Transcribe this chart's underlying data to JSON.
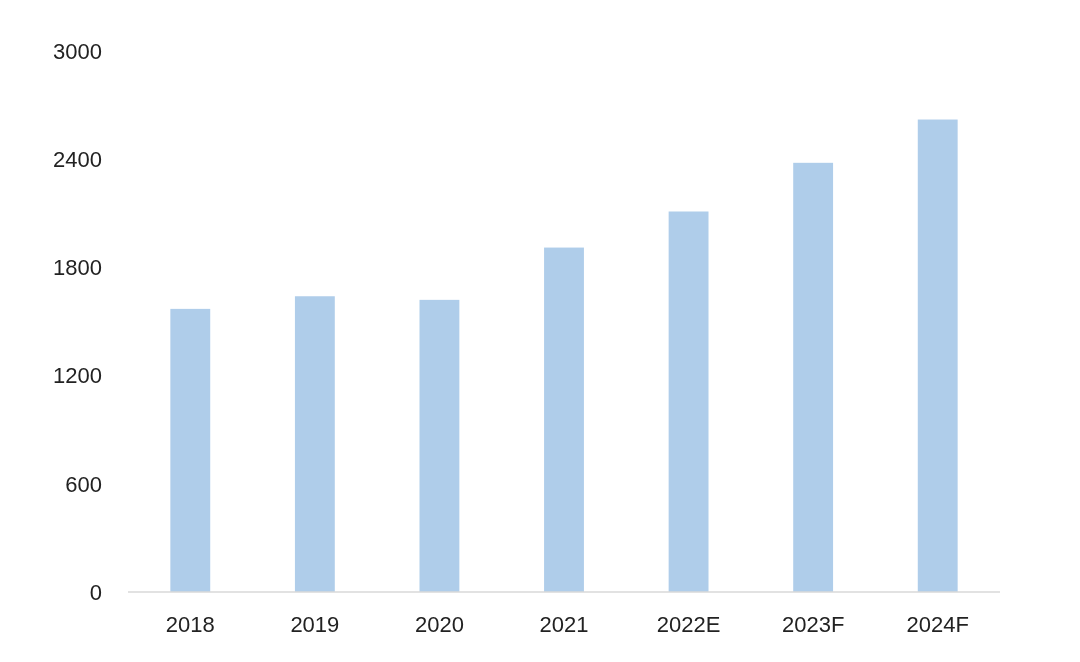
{
  "chart_data": {
    "type": "bar",
    "categories": [
      "2018",
      "2019",
      "2020",
      "2021",
      "2022E",
      "2023F",
      "2024F"
    ],
    "values": [
      1570,
      1640,
      1620,
      1910,
      2110,
      2380,
      2620
    ],
    "color": "#afcdea",
    "ylim": [
      0,
      3000
    ],
    "yticks": [
      0,
      600,
      1200,
      1800,
      2400,
      3000
    ],
    "grid": false
  }
}
